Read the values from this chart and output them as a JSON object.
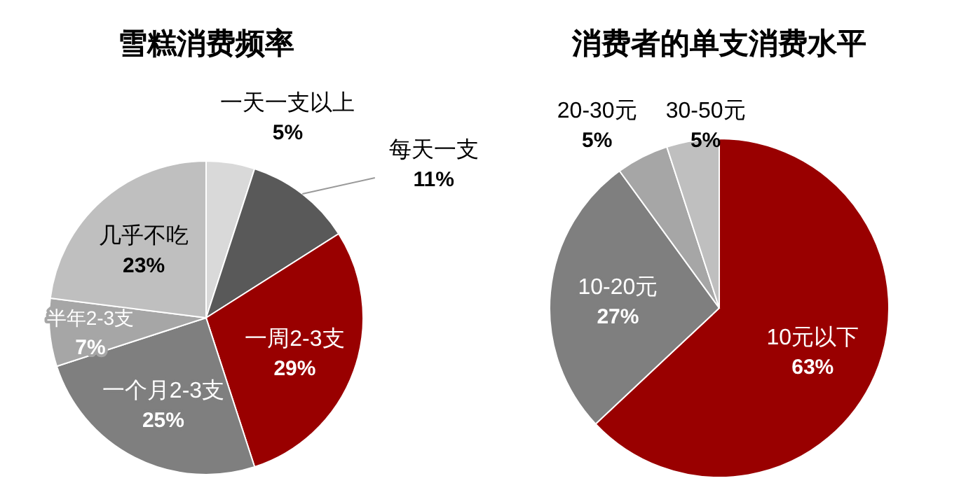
{
  "chart_data": [
    {
      "type": "pie",
      "title": "雪糕消费频率",
      "categories": [
        "一天一支以上",
        "每天一支",
        "一周2-3支",
        "一个月2-3支",
        "半年2-3支",
        "几乎不吃"
      ],
      "values": [
        5,
        11,
        29,
        25,
        7,
        23
      ],
      "value_labels": [
        "5%",
        "11%",
        "29%",
        "25%",
        "7%",
        "23%"
      ],
      "colors": [
        "#d9d9d9",
        "#595959",
        "#990000",
        "#7f7f7f",
        "#a6a6a6",
        "#bfbfbf"
      ]
    },
    {
      "type": "pie",
      "title": "消费者的单支消费水平",
      "categories": [
        "10元以下",
        "10-20元",
        "20-30元",
        "30-50元"
      ],
      "values": [
        63,
        27,
        5,
        5
      ],
      "value_labels": [
        "63%",
        "27%",
        "5%",
        "5%"
      ],
      "colors": [
        "#990000",
        "#7f7f7f",
        "#a6a6a6",
        "#bfbfbf"
      ]
    }
  ]
}
